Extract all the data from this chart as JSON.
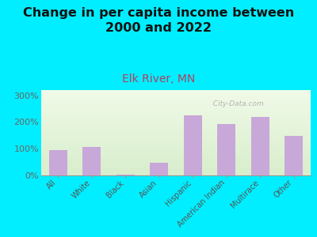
{
  "title": "Change in per capita income between\n2000 and 2022",
  "subtitle": "Elk River, MN",
  "categories": [
    "All",
    "White",
    "Black",
    "Asian",
    "Hispanic",
    "American Indian",
    "Multirace",
    "Other"
  ],
  "values": [
    95,
    107,
    2,
    48,
    225,
    192,
    220,
    148
  ],
  "bar_color": "#c8a8d8",
  "background_outer": "#00eeff",
  "background_inner_top": "#f0fae8",
  "background_inner_bottom": "#d8eecc",
  "title_fontsize": 11.5,
  "subtitle_fontsize": 10,
  "subtitle_color": "#b04060",
  "title_color": "#111111",
  "ylabel_ticks": [
    0,
    100,
    200,
    300
  ],
  "ylabel_labels": [
    "0%",
    "100%",
    "200%",
    "300%"
  ],
  "ylim": [
    0,
    320
  ],
  "watermark": "  City-Data.com"
}
